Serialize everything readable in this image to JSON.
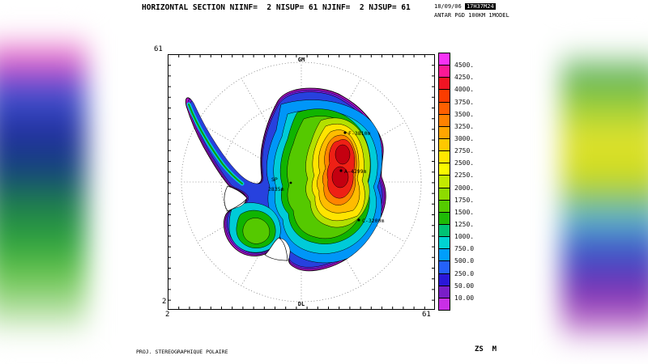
{
  "header": {
    "title": "HORIZONTAL SECTION NIINF=  2 NISUP= 61 NJINF=  2 NJSUP= 61",
    "date": "18/09/06",
    "time": "17H37M24",
    "model_info": "ANTAR PGD 100KM 1MODEL"
  },
  "axes": {
    "top_left": "61",
    "bottom_left_y": "2",
    "bottom_left_x": "2",
    "bottom_right_x": "61"
  },
  "map": {
    "labels": {
      "top_meridian": "GM",
      "bottom_meridian": "DL",
      "pole": "SP",
      "pole_elevation": "2835m",
      "dome_f": "F-3810m",
      "dome_a": "A-4299m",
      "dome_c": "C-3200m"
    },
    "colors": {
      "coast": "#b912cc",
      "purple": "#6a1ad0",
      "blue": "#2741de",
      "lightblue": "#0096f8",
      "cyan": "#00cbd8",
      "green": "#10b400",
      "green2": "#55c900",
      "ygreen": "#b4e000",
      "yellow": "#ffe400",
      "amber": "#ffbc00",
      "orange": "#ff8400",
      "red": "#ee2015",
      "darkred": "#c40010",
      "shelf": "#ffffff",
      "spine_green": "#0aa000",
      "spine_cyan": "#00c8e0"
    }
  },
  "colorbar": {
    "swatches": [
      {
        "color": "#f632f6",
        "label": "4500."
      },
      {
        "color": "#fa1996",
        "label": "4250."
      },
      {
        "color": "#f01423",
        "label": "4000."
      },
      {
        "color": "#fb3c00",
        "label": "3750."
      },
      {
        "color": "#ff5f00",
        "label": "3500."
      },
      {
        "color": "#ff8200",
        "label": "3250."
      },
      {
        "color": "#ffa500",
        "label": "3000."
      },
      {
        "color": "#ffc800",
        "label": "2750."
      },
      {
        "color": "#ffe600",
        "label": "2500."
      },
      {
        "color": "#f9f900",
        "label": "2250."
      },
      {
        "color": "#c3ea00",
        "label": "2000."
      },
      {
        "color": "#8edb00",
        "label": "1750."
      },
      {
        "color": "#55cb00",
        "label": "1500."
      },
      {
        "color": "#1fba06",
        "label": "1250."
      },
      {
        "color": "#00c375",
        "label": "1000."
      },
      {
        "color": "#00d2d2",
        "label": "750.0"
      },
      {
        "color": "#009efc",
        "label": "500.0"
      },
      {
        "color": "#2461fa",
        "label": "250.0"
      },
      {
        "color": "#2a17d8",
        "label": "50.00"
      },
      {
        "color": "#7a1ec8",
        "label": "10.00"
      },
      {
        "color": "#c92fe6",
        "label": ""
      }
    ]
  },
  "footer": {
    "projection": "PROJ. STEREOGRAPHIQUE POLAIRE",
    "field": "ZS  M"
  },
  "chart_data": {
    "type": "heatmap",
    "title": "HORIZONTAL SECTION NIINF=  2 NISUP= 61 NJINF=  2 NJSUP= 61",
    "field": "ZS",
    "units": "M",
    "projection": "PROJ. STEREOGRAPHIQUE POLAIRE",
    "x_range": [
      2,
      61
    ],
    "y_range": [
      2,
      61
    ],
    "contour_levels_m": [
      10,
      50,
      250,
      500,
      750,
      1000,
      1250,
      1500,
      1750,
      2000,
      2250,
      2500,
      2750,
      3000,
      3250,
      3500,
      3750,
      4000,
      4250,
      4500
    ],
    "annotated_points": [
      {
        "label": "SP",
        "elevation_m": 2835
      },
      {
        "label": "F",
        "elevation_m": 3810
      },
      {
        "label": "A",
        "elevation_m": 4299
      },
      {
        "label": "C",
        "elevation_m": 3200
      }
    ],
    "meridian_labels": [
      "GM",
      "DL"
    ],
    "legend_position": "right"
  }
}
